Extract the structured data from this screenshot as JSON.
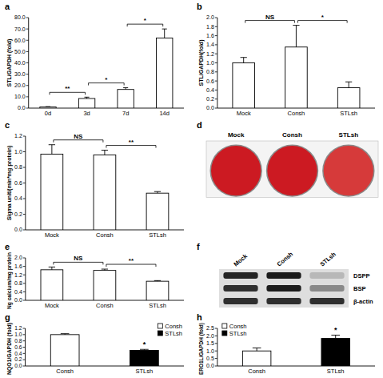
{
  "chart_data": [
    {
      "panel": "a",
      "type": "bar",
      "y_label": "STL/GAPDH (fold)",
      "categories": [
        "0d",
        "3d",
        "7d",
        "14d"
      ],
      "values": [
        1.0,
        8.5,
        16.5,
        62
      ],
      "errors": [
        0.3,
        1.2,
        1.5,
        8
      ],
      "color": "#ffffff",
      "ylim": [
        0,
        80
      ],
      "yticks": [
        {
          "value": 0,
          "label": "0.0"
        },
        {
          "value": 10,
          "label": "10.0"
        },
        {
          "value": 20,
          "label": "20.0"
        },
        {
          "value": 30,
          "label": "30.0"
        },
        {
          "value": 40,
          "label": "40.0"
        },
        {
          "value": 50,
          "label": "50.0"
        },
        {
          "value": 60,
          "label": "60.0"
        },
        {
          "value": 70,
          "label": "70.0"
        },
        {
          "value": 80,
          "label": "80.0"
        }
      ],
      "annotations": [
        {
          "between": [
            "0d",
            "3d"
          ],
          "label": "**"
        },
        {
          "between": [
            "3d",
            "7d"
          ],
          "label": "*"
        },
        {
          "between": [
            "7d",
            "14d"
          ],
          "label": "*"
        }
      ]
    },
    {
      "panel": "b",
      "type": "bar",
      "y_label": "STL/GAPDH(fold)",
      "categories": [
        "Mock",
        "Consh",
        "STLsh"
      ],
      "values": [
        1.0,
        1.35,
        0.45
      ],
      "errors": [
        0.12,
        0.48,
        0.13
      ],
      "color": "#ffffff",
      "ylim": [
        0,
        2
      ],
      "yticks": [
        {
          "value": 0,
          "label": "0.0"
        },
        0.2,
        0.4,
        0.6,
        0.8,
        {
          "value": 1,
          "label": "1.0"
        },
        1.2,
        1.4,
        1.6,
        1.8,
        {
          "value": 2,
          "label": "2.0"
        }
      ],
      "annotations": [
        {
          "between": [
            "Mock",
            "Consh"
          ],
          "label": "NS"
        },
        {
          "between": [
            "Consh",
            "STLsh"
          ],
          "label": "*"
        }
      ]
    },
    {
      "panel": "c",
      "type": "bar",
      "y_label": "Sigma unit/(min*mg protein)",
      "categories": [
        "Mock",
        "Consh",
        "STLsh"
      ],
      "values": [
        0.97,
        0.96,
        0.47
      ],
      "errors": [
        0.12,
        0.06,
        0.02
      ],
      "color": "#ffffff",
      "ylim": [
        0,
        1.2
      ],
      "yticks": [
        {
          "value": 0,
          "label": "0.0"
        },
        0.2,
        0.4,
        0.6,
        0.8,
        {
          "value": 1,
          "label": "1.0"
        },
        1.2
      ],
      "annotations": [
        {
          "between": [
            "Mock",
            "Consh"
          ],
          "label": "NS"
        },
        {
          "between": [
            "Consh",
            "STLsh"
          ],
          "label": "**"
        }
      ]
    },
    {
      "panel": "d",
      "type": "wells",
      "categories": [
        "Mock",
        "Consh",
        "STLsh"
      ],
      "colors": [
        "#cc1a22",
        "#cc1a22",
        "#d63a3a"
      ]
    },
    {
      "panel": "e",
      "type": "bar",
      "y_label": "Ng calcium/mg protein",
      "categories": [
        "Mock",
        "Consh",
        "STLsh"
      ],
      "values": [
        1.44,
        1.41,
        0.9
      ],
      "errors": [
        0.13,
        0.06,
        0.03
      ],
      "color": "#ffffff",
      "ylim": [
        0,
        2
      ],
      "yticks": [
        {
          "value": 0,
          "label": "0.0"
        },
        0.4,
        0.8,
        1.2,
        1.6,
        {
          "value": 2,
          "label": "2.0"
        }
      ],
      "annotations": [
        {
          "between": [
            "Mock",
            "Consh"
          ],
          "label": "NS"
        },
        {
          "between": [
            "Consh",
            "STLsh"
          ],
          "label": "**"
        }
      ]
    },
    {
      "panel": "f",
      "type": "blot",
      "categories": [
        "Mock",
        "Consh",
        "STLsh"
      ],
      "series": [
        {
          "name": "DSPP",
          "values": [
            0.95,
            1.0,
            0.15
          ]
        },
        {
          "name": "BSP",
          "values": [
            0.9,
            1.0,
            0.4
          ]
        },
        {
          "name": "β-actin",
          "values": [
            0.9,
            0.9,
            0.9
          ]
        }
      ]
    },
    {
      "panel": "g",
      "type": "bar",
      "y_label": "NQO1/GAPDH (fold)",
      "categories": [
        "Consh",
        "STLsh"
      ],
      "values": [
        1.0,
        0.5
      ],
      "errors": [
        0.03,
        0.03
      ],
      "colors": [
        "#ffffff",
        "#000000"
      ],
      "legend": "top-right",
      "ylim": [
        0,
        1.2
      ],
      "yticks": [
        {
          "value": 0,
          "label": "0.0"
        },
        0.2,
        0.4,
        0.6,
        0.8,
        {
          "value": 1,
          "label": "1.0"
        },
        1.2
      ],
      "annotations": [
        {
          "on": "STLsh",
          "label": "*"
        }
      ]
    },
    {
      "panel": "h",
      "type": "bar",
      "y_label": "ERO1L/GAPDH (fold)",
      "categories": [
        "Consh",
        "STLsh"
      ],
      "values": [
        1.0,
        1.83
      ],
      "errors": [
        0.2,
        0.22
      ],
      "colors": [
        "#ffffff",
        "#000000"
      ],
      "legend": "top-left",
      "ylim": [
        0,
        2.5
      ],
      "yticks": [
        {
          "value": 0,
          "label": "0.0"
        },
        0.5,
        {
          "value": 1,
          "label": "1.0"
        },
        1.5,
        {
          "value": 2,
          "label": "2.0"
        },
        2.5
      ],
      "annotations": [
        {
          "on": "STLsh",
          "label": "*"
        }
      ]
    }
  ]
}
